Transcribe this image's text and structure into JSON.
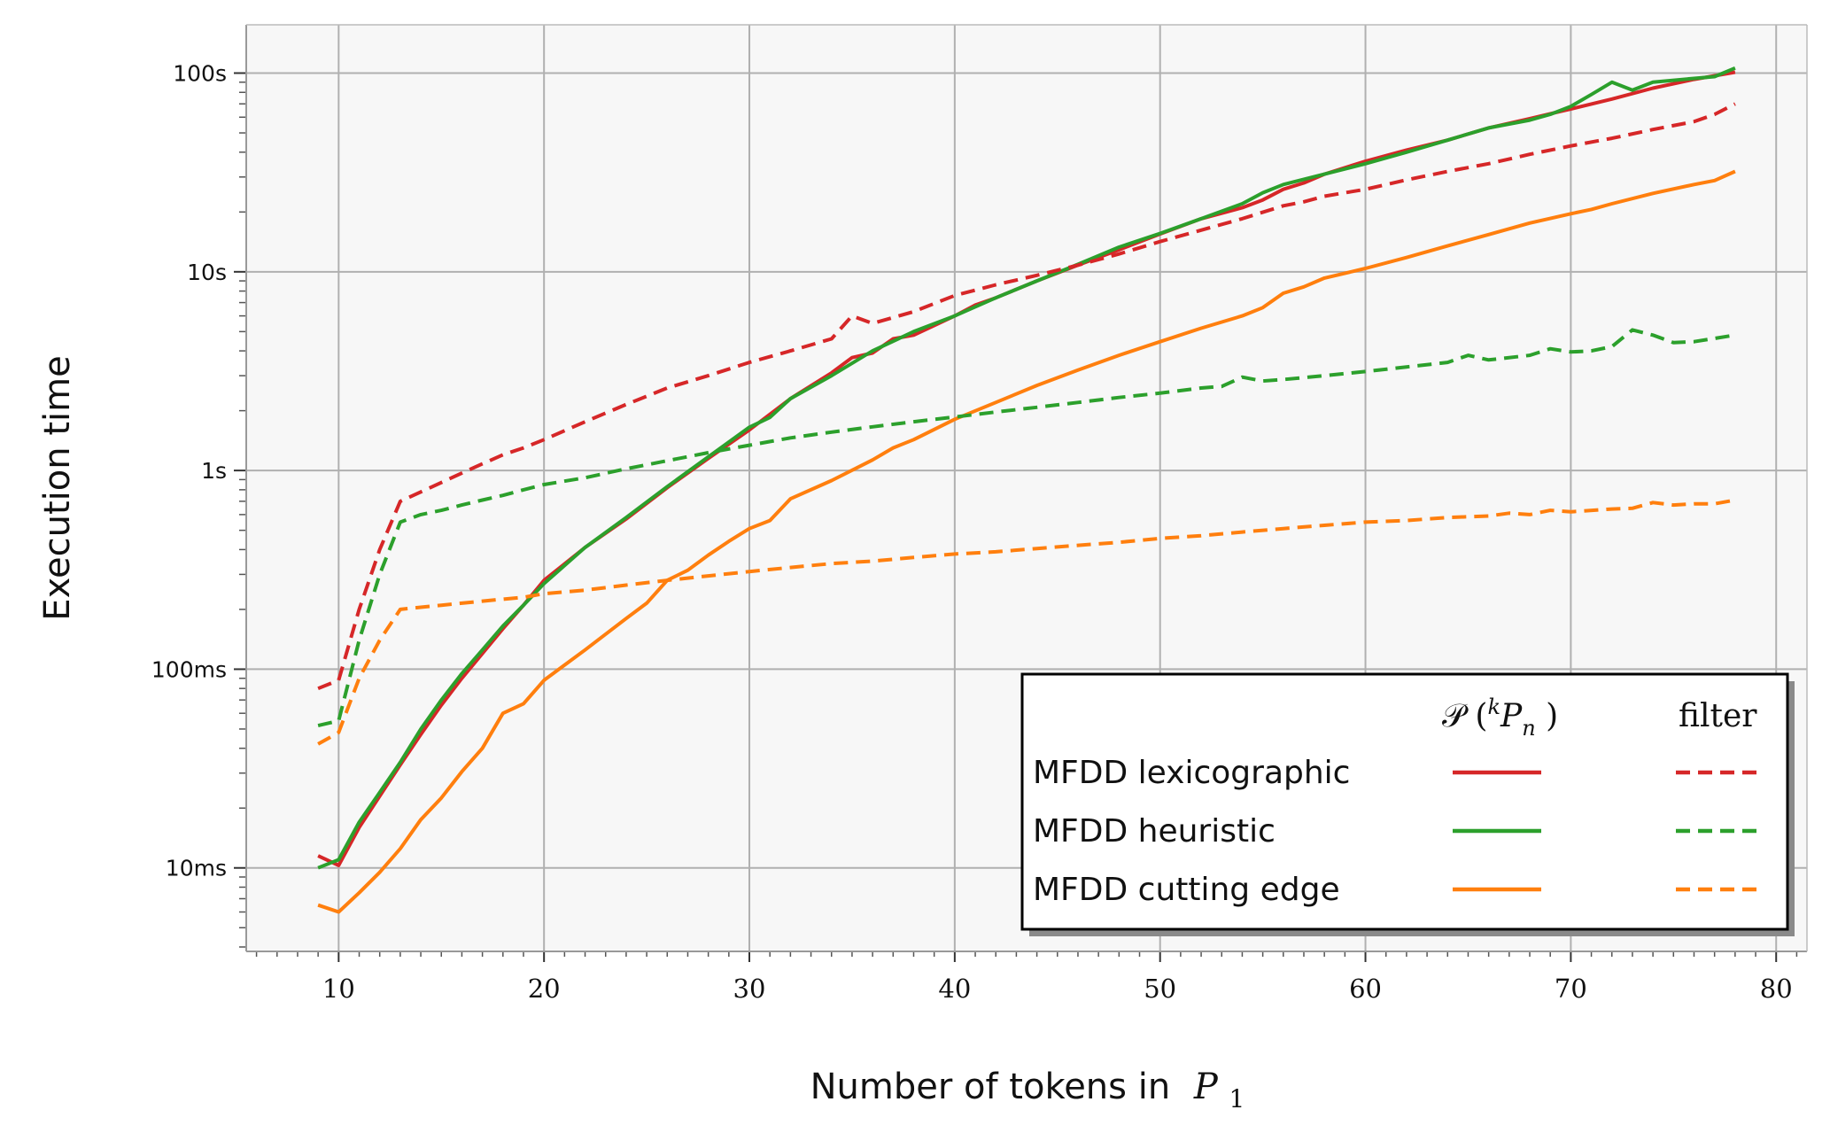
{
  "chart_data": {
    "type": "line",
    "title": "",
    "xlabel": "Number of tokens in",
    "xlabel_math": "P",
    "xlabel_sub": "1",
    "ylabel": "Execution time",
    "xlim": [
      5.5,
      81.5
    ],
    "ylim": [
      0.0038,
      175
    ],
    "yscale": "log",
    "grid": true,
    "x_ticks": [
      10,
      20,
      30,
      40,
      50,
      60,
      70,
      80
    ],
    "y_ticks": [
      {
        "value": 0.01,
        "label": "10ms"
      },
      {
        "value": 0.1,
        "label": "100ms"
      },
      {
        "value": 1,
        "label": "1s"
      },
      {
        "value": 10,
        "label": "10s"
      },
      {
        "value": 100,
        "label": "100s"
      }
    ],
    "legend": {
      "position": "lower-right",
      "col_headers": [
        "𝒫 (",
        "k",
        "P",
        "n",
        ")",
        "filter"
      ],
      "entries": [
        "MFDD lexicographic",
        "MFDD heuristic",
        "MFDD cutting edge"
      ]
    },
    "series": [
      {
        "name": "MFDD lexicographic",
        "method": "𝒫",
        "color": "#d62728",
        "dashed": false,
        "x": [
          9,
          10,
          11,
          12,
          13,
          14,
          15,
          16,
          17,
          18,
          19,
          20,
          22,
          24,
          26,
          28,
          30,
          32,
          34,
          35,
          36,
          37,
          38,
          40,
          41,
          42,
          44,
          46,
          48,
          50,
          52,
          54,
          55,
          56,
          57,
          58,
          60,
          62,
          64,
          66,
          68,
          70,
          72,
          74,
          76,
          78
        ],
        "y": [
          0.0115,
          0.0103,
          0.016,
          0.023,
          0.033,
          0.047,
          0.066,
          0.09,
          0.12,
          0.16,
          0.21,
          0.28,
          0.41,
          0.57,
          0.82,
          1.15,
          1.6,
          2.3,
          3.1,
          3.7,
          3.9,
          4.6,
          4.8,
          6.0,
          6.8,
          7.4,
          9.0,
          10.8,
          12.9,
          15.5,
          18.5,
          21,
          23,
          26,
          28,
          31,
          36,
          41,
          46,
          53,
          59,
          66,
          74,
          84,
          93,
          101
        ]
      },
      {
        "name": "MFDD heuristic",
        "method": "𝒫",
        "color": "#2ca02c",
        "dashed": false,
        "x": [
          9,
          10,
          11,
          12,
          13,
          14,
          15,
          16,
          17,
          18,
          19,
          20,
          22,
          24,
          26,
          28,
          30,
          31,
          32,
          34,
          36,
          38,
          40,
          42,
          44,
          46,
          48,
          50,
          52,
          54,
          55,
          56,
          58,
          60,
          62,
          64,
          66,
          68,
          69,
          70,
          71,
          72,
          73,
          74,
          76,
          77,
          78
        ],
        "y": [
          0.01,
          0.011,
          0.017,
          0.024,
          0.034,
          0.05,
          0.07,
          0.095,
          0.125,
          0.165,
          0.21,
          0.27,
          0.41,
          0.58,
          0.83,
          1.17,
          1.65,
          1.85,
          2.3,
          3.0,
          4.0,
          5.0,
          6.0,
          7.4,
          9.0,
          10.9,
          13.3,
          15.6,
          18.5,
          22,
          25,
          27.5,
          31,
          35,
          40,
          46,
          53,
          58,
          62,
          68,
          78,
          90,
          82,
          90,
          94,
          96,
          106
        ]
      },
      {
        "name": "MFDD cutting edge",
        "method": "𝒫",
        "color": "#ff7f0e",
        "dashed": false,
        "x": [
          9,
          10,
          11,
          12,
          13,
          14,
          15,
          16,
          17,
          18,
          19,
          20,
          22,
          24,
          25,
          26,
          27,
          28,
          29,
          30,
          31,
          32,
          34,
          36,
          37,
          38,
          40,
          42,
          44,
          46,
          48,
          50,
          52,
          54,
          55,
          56,
          57,
          58,
          60,
          62,
          64,
          66,
          68,
          70,
          71,
          72,
          74,
          76,
          77,
          78
        ],
        "y": [
          0.0065,
          0.006,
          0.0075,
          0.0095,
          0.0125,
          0.0175,
          0.0225,
          0.0305,
          0.04,
          0.06,
          0.067,
          0.088,
          0.125,
          0.18,
          0.215,
          0.28,
          0.315,
          0.375,
          0.44,
          0.51,
          0.56,
          0.72,
          0.89,
          1.13,
          1.3,
          1.43,
          1.81,
          2.2,
          2.68,
          3.2,
          3.8,
          4.45,
          5.2,
          6.0,
          6.6,
          7.8,
          8.4,
          9.3,
          10.4,
          11.8,
          13.5,
          15.4,
          17.6,
          19.6,
          20.6,
          22,
          24.8,
          27.5,
          28.8,
          32
        ]
      },
      {
        "name": "MFDD lexicographic",
        "method": "filter",
        "color": "#d62728",
        "dashed": true,
        "x": [
          9,
          10,
          11,
          12,
          13,
          14,
          15,
          16,
          17,
          18,
          19,
          20,
          22,
          24,
          26,
          28,
          30,
          32,
          34,
          35,
          36,
          38,
          40,
          42,
          44,
          46,
          48,
          50,
          52,
          54,
          56,
          57,
          58,
          60,
          62,
          64,
          66,
          68,
          70,
          72,
          74,
          76,
          77,
          78
        ],
        "y": [
          0.08,
          0.088,
          0.2,
          0.4,
          0.7,
          0.78,
          0.87,
          0.97,
          1.08,
          1.2,
          1.3,
          1.43,
          1.76,
          2.15,
          2.6,
          3.0,
          3.5,
          4.0,
          4.6,
          6.0,
          5.5,
          6.3,
          7.6,
          8.6,
          9.6,
          10.8,
          12.3,
          14.2,
          16.2,
          18.5,
          21.5,
          22.5,
          24,
          26,
          29,
          32,
          35,
          39,
          43,
          47,
          52,
          57,
          62,
          70
        ]
      },
      {
        "name": "MFDD heuristic",
        "method": "filter",
        "color": "#2ca02c",
        "dashed": true,
        "x": [
          9,
          10,
          11,
          12,
          13,
          14,
          15,
          16,
          17,
          18,
          19,
          20,
          22,
          24,
          26,
          28,
          30,
          32,
          34,
          36,
          38,
          40,
          42,
          44,
          46,
          48,
          50,
          52,
          53,
          54,
          55,
          56,
          58,
          60,
          62,
          64,
          65,
          66,
          68,
          69,
          70,
          71,
          72,
          73,
          74,
          75,
          76,
          78
        ],
        "y": [
          0.052,
          0.055,
          0.14,
          0.3,
          0.55,
          0.6,
          0.63,
          0.67,
          0.71,
          0.75,
          0.8,
          0.85,
          0.92,
          1.02,
          1.12,
          1.23,
          1.34,
          1.46,
          1.56,
          1.66,
          1.76,
          1.86,
          1.97,
          2.08,
          2.2,
          2.33,
          2.45,
          2.6,
          2.65,
          2.95,
          2.82,
          2.87,
          3.0,
          3.15,
          3.32,
          3.5,
          3.8,
          3.6,
          3.8,
          4.1,
          3.95,
          4.0,
          4.2,
          5.1,
          4.8,
          4.4,
          4.45,
          4.8
        ]
      },
      {
        "name": "MFDD cutting edge",
        "method": "filter",
        "color": "#ff7f0e",
        "dashed": true,
        "x": [
          9,
          10,
          11,
          12,
          13,
          14,
          15,
          16,
          17,
          18,
          19,
          20,
          22,
          24,
          26,
          28,
          30,
          32,
          34,
          36,
          38,
          40,
          42,
          44,
          46,
          48,
          50,
          52,
          54,
          56,
          58,
          60,
          62,
          64,
          66,
          67,
          68,
          69,
          70,
          72,
          73,
          74,
          75,
          76,
          77,
          78
        ],
        "y": [
          0.042,
          0.048,
          0.09,
          0.14,
          0.2,
          0.205,
          0.21,
          0.215,
          0.22,
          0.225,
          0.23,
          0.24,
          0.25,
          0.265,
          0.28,
          0.295,
          0.31,
          0.325,
          0.34,
          0.35,
          0.365,
          0.38,
          0.39,
          0.405,
          0.42,
          0.435,
          0.455,
          0.47,
          0.49,
          0.51,
          0.53,
          0.55,
          0.56,
          0.58,
          0.59,
          0.61,
          0.6,
          0.63,
          0.62,
          0.64,
          0.645,
          0.69,
          0.67,
          0.68,
          0.68,
          0.71
        ]
      }
    ]
  }
}
